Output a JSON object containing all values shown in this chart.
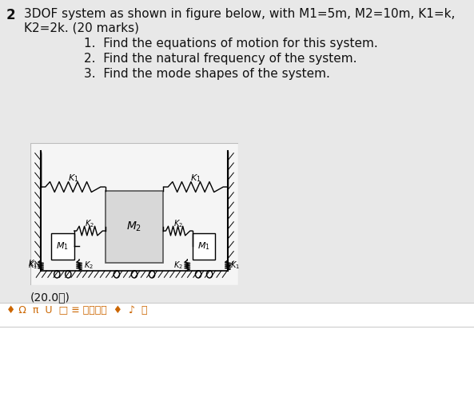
{
  "bg_color": "#e8e8e8",
  "diagram_bg": "#ffffff",
  "text_color": "#111111",
  "title_num": "2",
  "title_line1": "3DOF system as shown in figure below, with M1=5m, M2=10m, K1=k,",
  "title_line2": "K2=2k. (20 marks)",
  "items": [
    "1.  Find the equations of motion for this system.",
    "2.  Find the natural frequency of the system.",
    "3.  Find the mode shapes of the system."
  ],
  "score": "(20.0分)",
  "toolbar": "♦ Ω  π  U  □ ≡ 上传附件  ♦  ♪  ⓞ"
}
